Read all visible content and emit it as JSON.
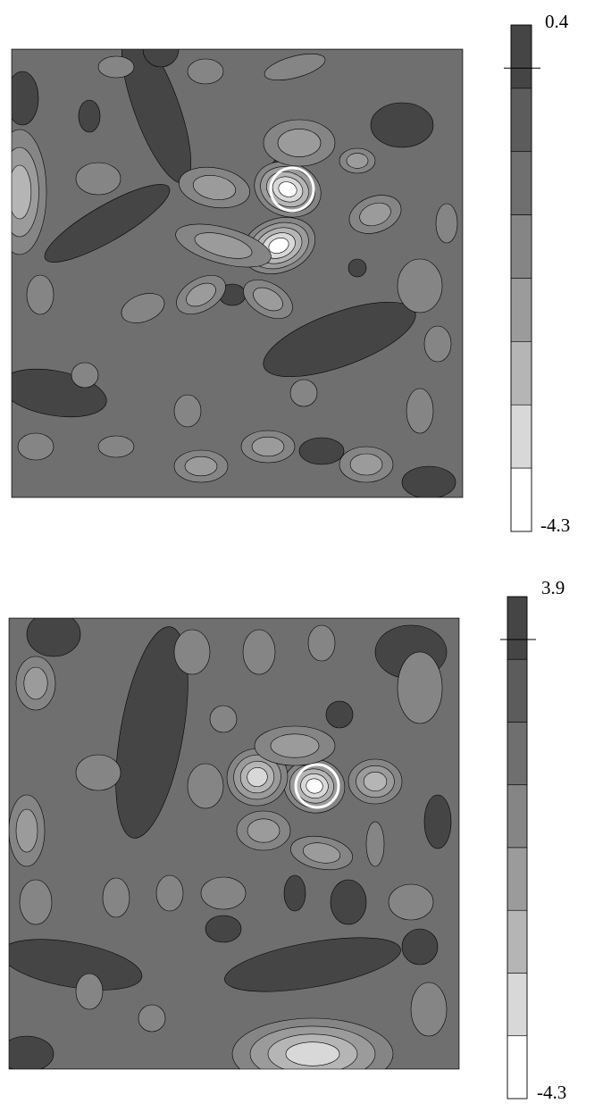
{
  "chart_data": [
    {
      "type": "contour",
      "colorbar": {
        "max": 0.4,
        "min": -4.3,
        "marker": 0,
        "colors": [
          "#454545",
          "#5c5c5c",
          "#6f6f6f",
          "#858585",
          "#9b9b9b",
          "#b5b5b5",
          "#d8d8d8",
          "#ffffff"
        ]
      }
    },
    {
      "type": "contour",
      "colorbar": {
        "max": 3.9,
        "min": -4.3,
        "marker": 3.2,
        "colors": [
          "#454545",
          "#5c5c5c",
          "#6f6f6f",
          "#858585",
          "#9b9b9b",
          "#b5b5b5",
          "#d8d8d8",
          "#ffffff"
        ]
      }
    }
  ]
}
